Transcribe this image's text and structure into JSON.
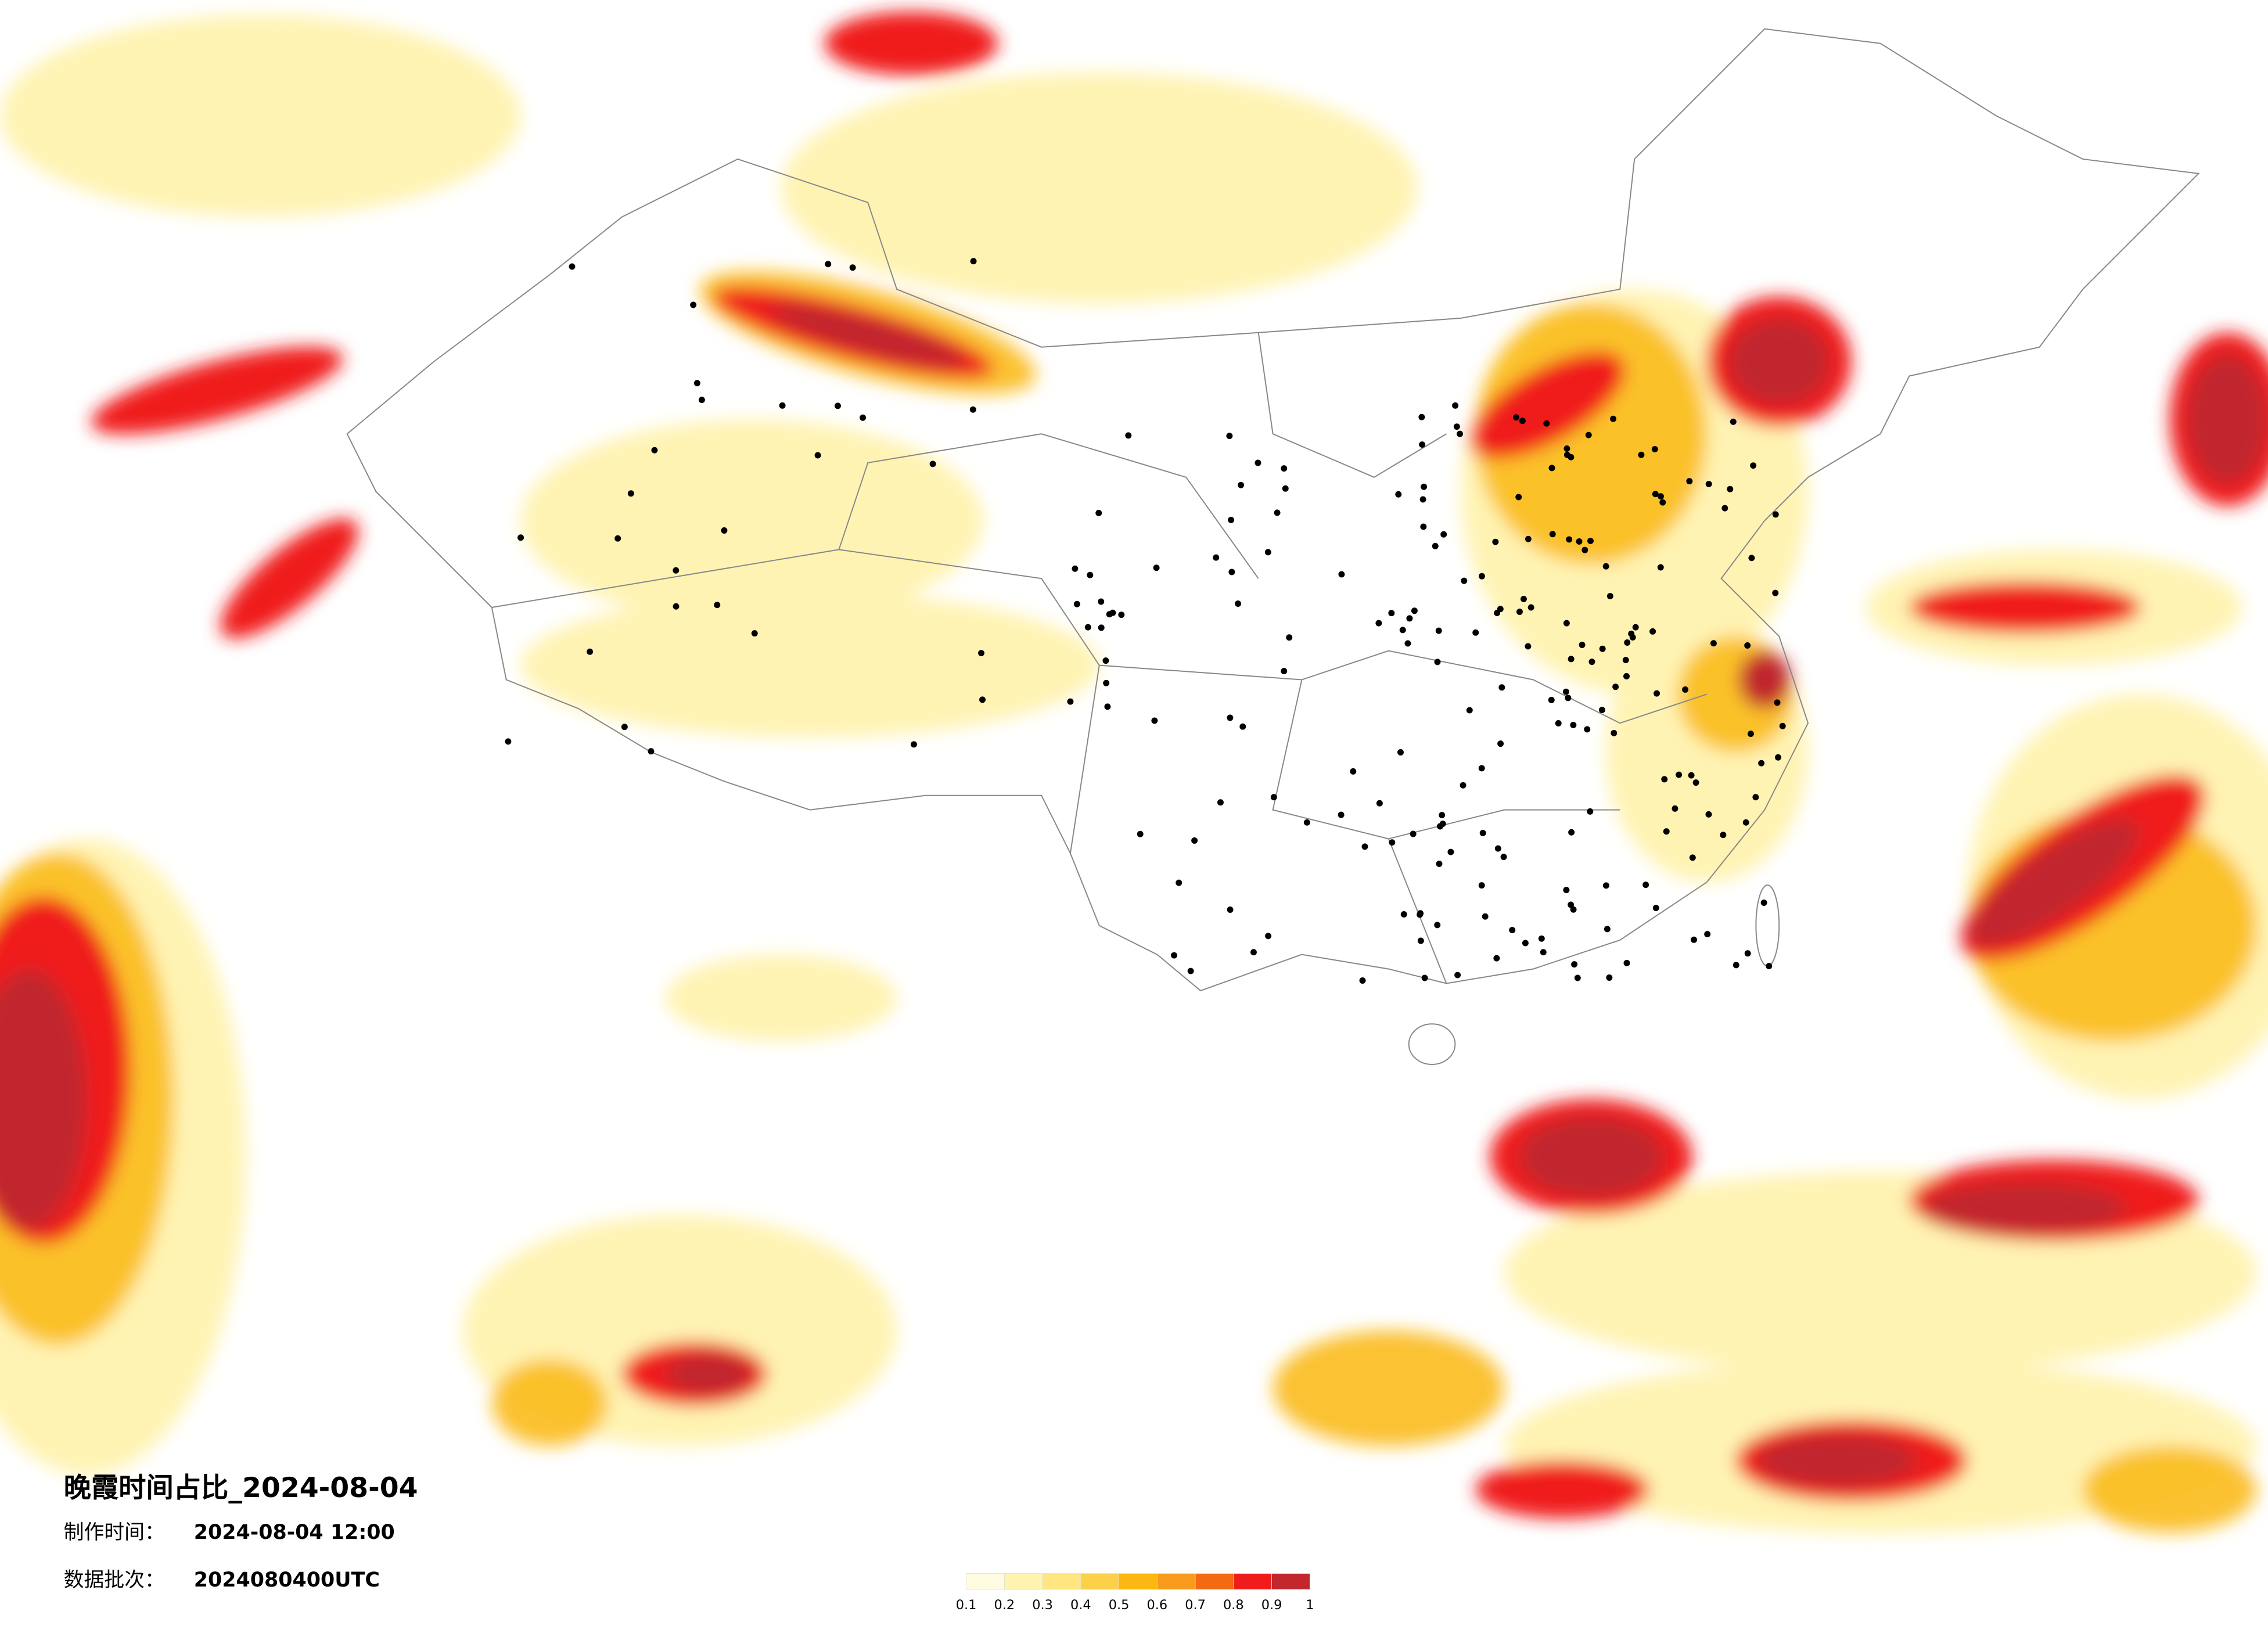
{
  "title": "晚霞时间占比_2024-08-04",
  "info": [
    {
      "label": "制作时间：",
      "value": "2024-08-04 12:00"
    },
    {
      "label": "数据批次：",
      "value": "2024080400UTC"
    }
  ],
  "legend": {
    "colors": [
      "#fffbe0",
      "#fff3b0",
      "#ffe680",
      "#fdd04a",
      "#fbb812",
      "#f89a1c",
      "#f36a12",
      "#f01c1c",
      "#c1272d"
    ],
    "labels": [
      "0.1",
      "0.2",
      "0.3",
      "0.4",
      "0.5",
      "0.6",
      "0.7",
      "0.8",
      "0.9",
      "1"
    ]
  }
}
